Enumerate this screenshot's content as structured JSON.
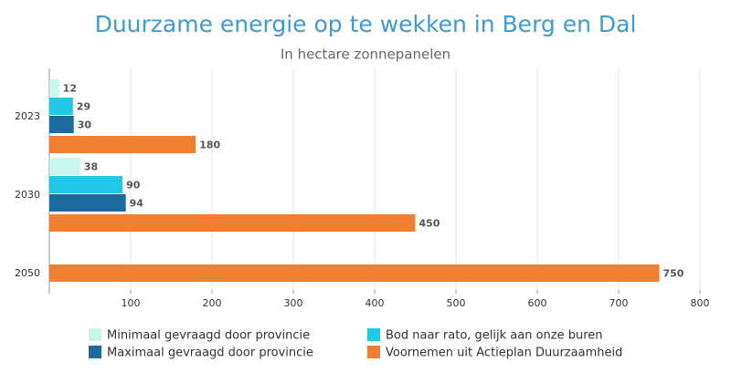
{
  "chart_data": {
    "type": "bar",
    "orientation": "horizontal",
    "title": "Duurzame energie op te wekken in Berg en Dal",
    "subtitle": "In hectare zonnepanelen",
    "categories": [
      "2023",
      "2030",
      "2050"
    ],
    "series": [
      {
        "name": "Minimaal gevraagd door provincie",
        "color": "#c9f6ec",
        "values": [
          12,
          38,
          null
        ]
      },
      {
        "name": "Bod naar rato, gelijk aan onze buren",
        "color": "#20c7e6",
        "values": [
          29,
          90,
          null
        ]
      },
      {
        "name": "Maximaal gevraagd door provincie",
        "color": "#1c6a9e",
        "values": [
          30,
          94,
          null
        ]
      },
      {
        "name": "Voornemen uit Actieplan Duurzaamheid",
        "color": "#f07f32",
        "values": [
          180,
          450,
          750
        ]
      }
    ],
    "xlim": [
      0,
      800
    ],
    "xticks": [
      100,
      200,
      300,
      400,
      500,
      600,
      700,
      800
    ],
    "grid": true
  }
}
